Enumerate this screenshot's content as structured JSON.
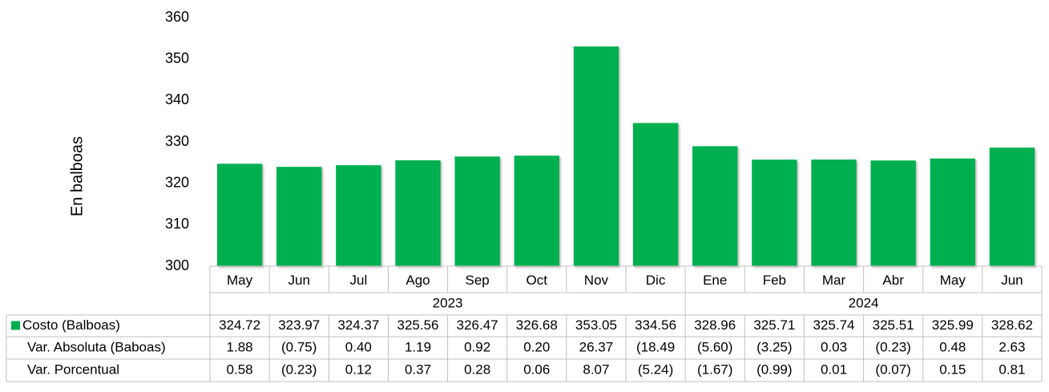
{
  "chart_data": {
    "type": "bar",
    "y_label": "En balboas",
    "categories": [
      "May",
      "Jun",
      "Jul",
      "Ago",
      "Sep",
      "Oct",
      "Nov",
      "Dic",
      "Ene",
      "Feb",
      "Mar",
      "Abr",
      "May",
      "Jun"
    ],
    "x_groups": [
      {
        "label": "2023",
        "count": 8
      },
      {
        "label": "2024",
        "count": 6
      }
    ],
    "series": [
      {
        "name": "Costo (Balboas)",
        "color": "#00b050",
        "values": [
          324.72,
          323.97,
          324.37,
          325.56,
          326.47,
          326.68,
          353.05,
          334.56,
          328.96,
          325.71,
          325.74,
          325.51,
          325.99,
          328.62
        ]
      }
    ],
    "table_rows": [
      {
        "name": "Var. Absoluta (Baboas)",
        "values": [
          1.88,
          -0.75,
          0.4,
          1.19,
          0.92,
          0.2,
          26.37,
          -18.49,
          -5.6,
          -3.25,
          0.03,
          -0.23,
          0.48,
          2.63
        ],
        "value_labels": [
          "1.88",
          "(0.75)",
          "0.40",
          "1.19",
          "0.92",
          "0.20",
          "26.37",
          "(18.49",
          "(5.60)",
          "(3.25)",
          "0.03",
          "(0.23)",
          "0.48",
          "2.63"
        ]
      },
      {
        "name": "Var. Porcentual",
        "values": [
          0.58,
          -0.23,
          0.12,
          0.37,
          0.28,
          0.06,
          8.07,
          -5.24,
          -1.67,
          -0.99,
          0.01,
          -0.07,
          0.15,
          0.81
        ],
        "value_labels": [
          "0.58",
          "(0.23)",
          "0.12",
          "0.37",
          "0.28",
          "0.06",
          "8.07",
          "(5.24)",
          "(1.67)",
          "(0.99)",
          "0.01",
          "(0.07)",
          "0.15",
          "0.81"
        ]
      }
    ],
    "ylim": [
      300,
      360
    ],
    "yticks": [
      300,
      310,
      320,
      330,
      340,
      350,
      360
    ],
    "grid": false
  }
}
